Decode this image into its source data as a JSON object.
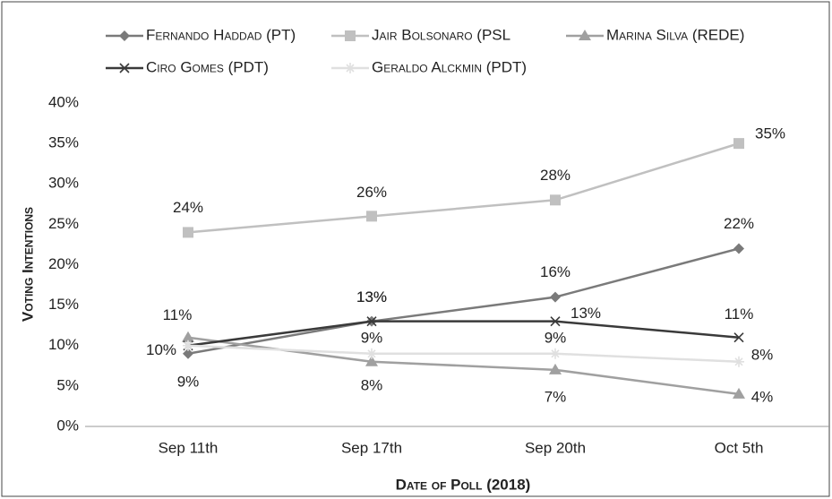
{
  "chart_data": {
    "type": "line",
    "x_label": "Date of Poll (2018)",
    "y_label": "Voting Intentions",
    "categories": [
      "Sep 11th",
      "Sep 17th",
      "Sep 20th",
      "Oct 5th"
    ],
    "ylim": [
      0,
      40
    ],
    "yticks": [
      {
        "value": 0,
        "label": "0%"
      },
      {
        "value": 5,
        "label": "5%"
      },
      {
        "value": 10,
        "label": "10%"
      },
      {
        "value": 15,
        "label": "15%"
      },
      {
        "value": 20,
        "label": "20%"
      },
      {
        "value": 25,
        "label": "25%"
      },
      {
        "value": 30,
        "label": "30%"
      },
      {
        "value": 35,
        "label": "35%"
      },
      {
        "value": 40,
        "label": "40%"
      }
    ],
    "grid": false,
    "legend_position": "top",
    "series": [
      {
        "name": "Fernando Haddad (PT)",
        "color": "#7a7a7a",
        "marker": "diamond",
        "values": [
          9,
          13,
          16,
          22
        ],
        "value_labels": [
          "9%",
          "13%",
          "16%",
          "22%"
        ]
      },
      {
        "name": "Jair Bolsonaro (PSL",
        "color": "#c0c0c0",
        "marker": "square",
        "values": [
          24,
          26,
          28,
          35
        ],
        "value_labels": [
          "24%",
          "26%",
          "28%",
          "35%"
        ]
      },
      {
        "name": "Marina Silva (REDE)",
        "color": "#a0a0a0",
        "marker": "triangle",
        "values": [
          11,
          8,
          7,
          4
        ],
        "value_labels": [
          "11%",
          "8%",
          "7%",
          "4%"
        ]
      },
      {
        "name": "Ciro Gomes (PDT)",
        "color": "#3a3a3a",
        "marker": "x",
        "values": [
          10,
          13,
          13,
          11
        ],
        "value_labels": [
          "10%",
          "13%",
          "13%",
          "11%"
        ]
      },
      {
        "name": "Geraldo Alckmin (PDT)",
        "color": "#e0e0e0",
        "marker": "star",
        "values": [
          10,
          9,
          9,
          8
        ],
        "value_labels": [
          null,
          "9%",
          "9%",
          "8%"
        ]
      }
    ]
  }
}
